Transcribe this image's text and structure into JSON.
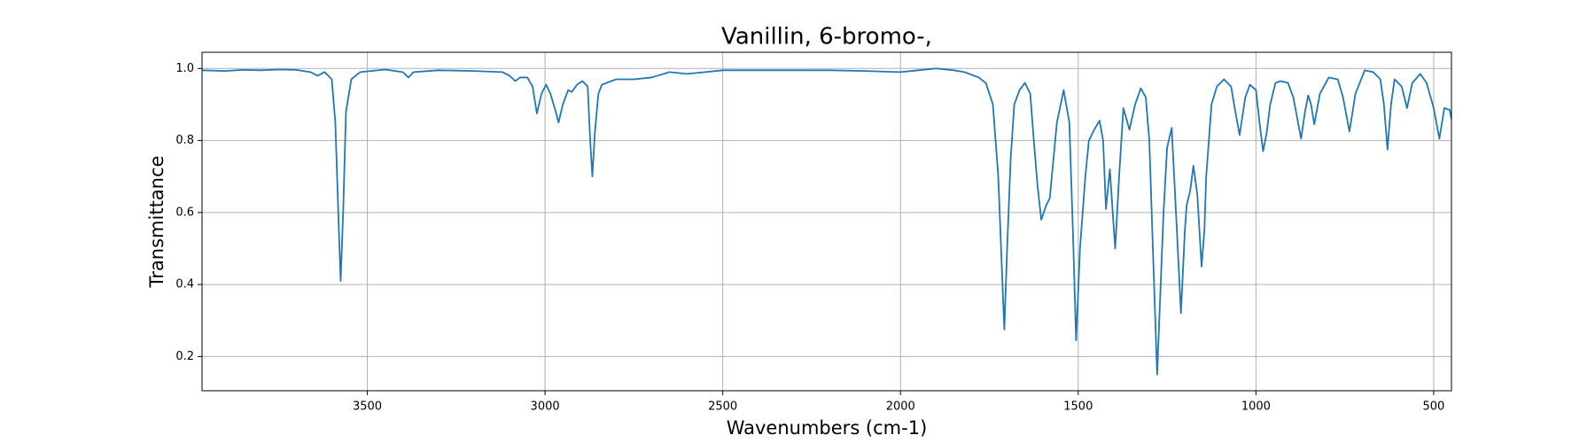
{
  "chart_data": {
    "type": "line",
    "title": "Vanillin, 6-bromo-,",
    "x_label": "Wavenumbers (cm-1)",
    "y_label": "Transmittance",
    "color": "#1f77b4",
    "grid": true,
    "x_reversed": true,
    "xlim": [
      3965,
      450
    ],
    "ylim": [
      0.105,
      1.045
    ],
    "xticks": [
      3500,
      3000,
      2500,
      2000,
      1500,
      1000,
      500
    ],
    "yticks": [
      0.2,
      0.4,
      0.6,
      0.8,
      {
        "value": 1,
        "label": "1.0"
      }
    ],
    "x": [
      3965,
      3900,
      3850,
      3800,
      3750,
      3700,
      3660,
      3640,
      3620,
      3600,
      3590,
      3580,
      3575,
      3568,
      3560,
      3545,
      3520,
      3450,
      3400,
      3384,
      3370,
      3300,
      3200,
      3120,
      3100,
      3084,
      3070,
      3050,
      3035,
      3023,
      3010,
      2997,
      2985,
      2970,
      2962,
      2950,
      2935,
      2925,
      2910,
      2895,
      2880,
      2873,
      2867,
      2860,
      2850,
      2840,
      2800,
      2750,
      2700,
      2650,
      2600,
      2550,
      2500,
      2400,
      2300,
      2200,
      2100,
      2000,
      1950,
      1900,
      1850,
      1820,
      1780,
      1760,
      1740,
      1725,
      1715,
      1708,
      1700,
      1690,
      1680,
      1665,
      1650,
      1635,
      1625,
      1615,
      1604,
      1590,
      1580,
      1560,
      1541,
      1525,
      1515,
      1506,
      1495,
      1480,
      1470,
      1455,
      1440,
      1430,
      1422,
      1411,
      1403,
      1396,
      1385,
      1373,
      1356,
      1340,
      1324,
      1310,
      1300,
      1290,
      1278,
      1268,
      1260,
      1250,
      1237,
      1225,
      1211,
      1200,
      1195,
      1185,
      1176,
      1165,
      1153,
      1145,
      1140,
      1125,
      1110,
      1090,
      1070,
      1058,
      1046,
      1030,
      1017,
      1000,
      990,
      980,
      970,
      960,
      945,
      931,
      910,
      895,
      873,
      862,
      853,
      845,
      836,
      820,
      795,
      770,
      755,
      737,
      720,
      694,
      670,
      650,
      640,
      630,
      620,
      610,
      590,
      575,
      560,
      538,
      520,
      500,
      484,
      470,
      455,
      450
    ],
    "values": [
      0.995,
      0.993,
      0.996,
      0.995,
      0.997,
      0.996,
      0.99,
      0.98,
      0.99,
      0.97,
      0.85,
      0.55,
      0.41,
      0.6,
      0.88,
      0.97,
      0.99,
      0.997,
      0.99,
      0.975,
      0.99,
      0.995,
      0.993,
      0.99,
      0.98,
      0.965,
      0.975,
      0.975,
      0.95,
      0.875,
      0.93,
      0.955,
      0.93,
      0.88,
      0.85,
      0.9,
      0.94,
      0.935,
      0.955,
      0.965,
      0.95,
      0.8,
      0.7,
      0.82,
      0.93,
      0.955,
      0.97,
      0.97,
      0.975,
      0.99,
      0.985,
      0.99,
      0.995,
      0.995,
      0.995,
      0.995,
      0.993,
      0.99,
      0.995,
      1.0,
      0.995,
      0.99,
      0.975,
      0.96,
      0.9,
      0.7,
      0.45,
      0.275,
      0.5,
      0.75,
      0.9,
      0.94,
      0.96,
      0.93,
      0.8,
      0.68,
      0.58,
      0.62,
      0.64,
      0.85,
      0.94,
      0.85,
      0.55,
      0.245,
      0.5,
      0.7,
      0.8,
      0.83,
      0.855,
      0.8,
      0.61,
      0.72,
      0.6,
      0.5,
      0.7,
      0.89,
      0.83,
      0.9,
      0.945,
      0.92,
      0.8,
      0.5,
      0.15,
      0.4,
      0.6,
      0.78,
      0.835,
      0.6,
      0.32,
      0.55,
      0.62,
      0.66,
      0.73,
      0.65,
      0.45,
      0.55,
      0.7,
      0.9,
      0.95,
      0.97,
      0.95,
      0.88,
      0.815,
      0.92,
      0.955,
      0.94,
      0.85,
      0.77,
      0.82,
      0.9,
      0.96,
      0.965,
      0.96,
      0.92,
      0.805,
      0.88,
      0.925,
      0.9,
      0.845,
      0.93,
      0.975,
      0.97,
      0.92,
      0.825,
      0.93,
      0.995,
      0.99,
      0.97,
      0.9,
      0.775,
      0.9,
      0.97,
      0.95,
      0.89,
      0.96,
      0.985,
      0.96,
      0.89,
      0.805,
      0.89,
      0.885,
      0.86
    ]
  }
}
